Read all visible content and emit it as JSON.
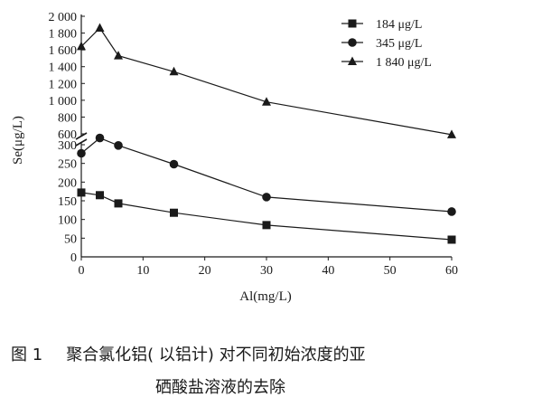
{
  "chart_data": {
    "type": "line",
    "xlabel": "Al(mg/L)",
    "ylabel": "Se(μg/L)",
    "x_ticks": [
      0,
      10,
      20,
      30,
      40,
      50,
      60
    ],
    "xlim": [
      0,
      60
    ],
    "y_axis_broken": true,
    "y_lower_ticks": [
      0,
      50,
      100,
      150,
      200,
      250,
      300
    ],
    "y_upper_ticks": [
      600,
      800,
      1000,
      1200,
      1400,
      1600,
      1800,
      2000
    ],
    "y_upper_tick_labels": [
      "600",
      "800",
      "1 000",
      "1 200",
      "1 400",
      "1 600",
      "1 800",
      "2 000"
    ],
    "ylim_lower": [
      0,
      310
    ],
    "ylim_upper": [
      600,
      2000
    ],
    "grid": false,
    "legend_position": "top-right",
    "series": [
      {
        "name": "184 μg/L",
        "marker": "square",
        "x": [
          0,
          3,
          6,
          15,
          30,
          60
        ],
        "y": [
          172,
          165,
          143,
          118,
          85,
          46
        ]
      },
      {
        "name": "345 μg/L",
        "marker": "circle",
        "x": [
          0,
          3,
          6,
          15,
          30,
          60
        ],
        "y": [
          277,
          318,
          298,
          248,
          160,
          121
        ]
      },
      {
        "name": "1 840 μg/L",
        "marker": "triangle",
        "x": [
          0,
          3,
          6,
          15,
          30,
          60
        ],
        "y": [
          1640,
          1860,
          1530,
          1340,
          980,
          590
        ]
      }
    ]
  },
  "caption": {
    "figure_label": "图 1",
    "line1": "聚合氯化铝( 以铝计) 对不同初始浓度的亚",
    "line2": "硒酸盐溶液的去除"
  }
}
